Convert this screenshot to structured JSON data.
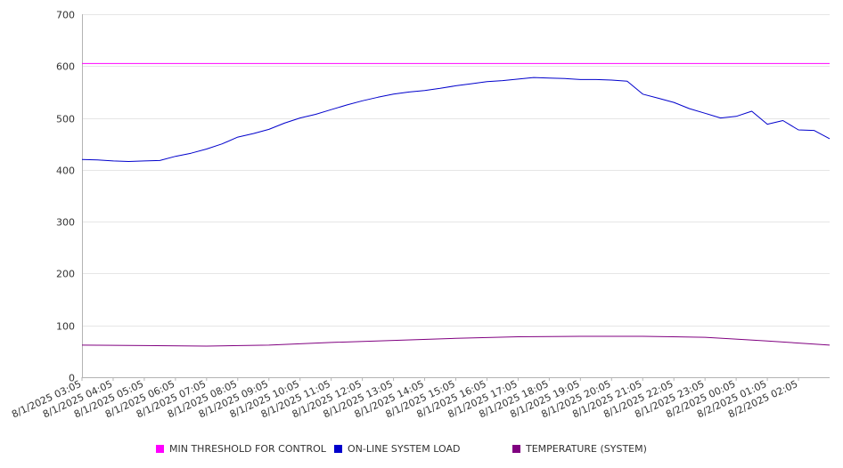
{
  "chart_data": {
    "type": "line",
    "title": "",
    "xlabel": "",
    "ylabel": "",
    "ylim": [
      0,
      700
    ],
    "yticks": [
      0,
      100,
      200,
      300,
      400,
      500,
      600,
      700
    ],
    "grid": true,
    "legend_position": "bottom",
    "x_start": "8/1/2025 03:05",
    "x_end": "8/2/2025 03:05",
    "categories": [
      "8/1/2025 03:05",
      "8/1/2025 04:05",
      "8/1/2025 05:05",
      "8/1/2025 06:05",
      "8/1/2025 07:05",
      "8/1/2025 08:05",
      "8/1/2025 09:05",
      "8/1/2025 10:05",
      "8/1/2025 11:05",
      "8/1/2025 12:05",
      "8/1/2025 13:05",
      "8/1/2025 14:05",
      "8/1/2025 15:05",
      "8/1/2025 16:05",
      "8/1/2025 17:05",
      "8/1/2025 18:05",
      "8/1/2025 19:05",
      "8/1/2025 20:05",
      "8/1/2025 21:05",
      "8/1/2025 22:05",
      "8/1/2025 23:05",
      "8/2/2025 00:05",
      "8/2/2025 01:05",
      "8/2/2025 02:05"
    ],
    "series": [
      {
        "name": "MIN THRESHOLD FOR CONTROL",
        "color": "#ff00ff",
        "points": [
          [
            "8/1/2025 03:05",
            605
          ],
          [
            "8/2/2025 03:05",
            605
          ]
        ]
      },
      {
        "name": "ON-LINE SYSTEM LOAD",
        "color": "#0000cc",
        "points": [
          [
            "8/1/2025 03:05",
            420
          ],
          [
            "8/1/2025 03:35",
            419
          ],
          [
            "8/1/2025 04:05",
            417
          ],
          [
            "8/1/2025 04:35",
            416
          ],
          [
            "8/1/2025 05:05",
            417
          ],
          [
            "8/1/2025 05:35",
            418
          ],
          [
            "8/1/2025 06:05",
            426
          ],
          [
            "8/1/2025 06:35",
            432
          ],
          [
            "8/1/2025 07:05",
            440
          ],
          [
            "8/1/2025 07:35",
            450
          ],
          [
            "8/1/2025 08:05",
            463
          ],
          [
            "8/1/2025 08:35",
            470
          ],
          [
            "8/1/2025 09:05",
            478
          ],
          [
            "8/1/2025 09:35",
            490
          ],
          [
            "8/1/2025 10:05",
            500
          ],
          [
            "8/1/2025 10:35",
            507
          ],
          [
            "8/1/2025 11:05",
            516
          ],
          [
            "8/1/2025 11:35",
            525
          ],
          [
            "8/1/2025 12:05",
            533
          ],
          [
            "8/1/2025 12:35",
            540
          ],
          [
            "8/1/2025 13:05",
            546
          ],
          [
            "8/1/2025 13:35",
            550
          ],
          [
            "8/1/2025 14:05",
            553
          ],
          [
            "8/1/2025 14:35",
            557
          ],
          [
            "8/1/2025 15:05",
            562
          ],
          [
            "8/1/2025 15:35",
            566
          ],
          [
            "8/1/2025 16:05",
            570
          ],
          [
            "8/1/2025 16:35",
            572
          ],
          [
            "8/1/2025 17:05",
            575
          ],
          [
            "8/1/2025 17:35",
            578
          ],
          [
            "8/1/2025 18:05",
            577
          ],
          [
            "8/1/2025 18:35",
            576
          ],
          [
            "8/1/2025 19:05",
            574
          ],
          [
            "8/1/2025 19:35",
            574
          ],
          [
            "8/1/2025 20:05",
            573
          ],
          [
            "8/1/2025 20:35",
            571
          ],
          [
            "8/1/2025 21:05",
            546
          ],
          [
            "8/1/2025 21:35",
            538
          ],
          [
            "8/1/2025 22:05",
            530
          ],
          [
            "8/1/2025 22:35",
            518
          ],
          [
            "8/1/2025 23:05",
            509
          ],
          [
            "8/1/2025 23:35",
            500
          ],
          [
            "8/2/2025 00:05",
            503
          ],
          [
            "8/2/2025 00:35",
            513
          ],
          [
            "8/2/2025 01:05",
            488
          ],
          [
            "8/2/2025 01:35",
            495
          ],
          [
            "8/2/2025 02:05",
            477
          ],
          [
            "8/2/2025 02:35",
            476
          ],
          [
            "8/2/2025 03:05",
            460
          ]
        ]
      },
      {
        "name": "TEMPERATURE (SYSTEM)",
        "color": "#800080",
        "points": [
          [
            "8/1/2025 03:05",
            62
          ],
          [
            "8/1/2025 05:05",
            61
          ],
          [
            "8/1/2025 07:05",
            60
          ],
          [
            "8/1/2025 09:05",
            62
          ],
          [
            "8/1/2025 11:05",
            67
          ],
          [
            "8/1/2025 13:05",
            71
          ],
          [
            "8/1/2025 15:05",
            75
          ],
          [
            "8/1/2025 17:05",
            78
          ],
          [
            "8/1/2025 19:05",
            79
          ],
          [
            "8/1/2025 21:05",
            79
          ],
          [
            "8/1/2025 23:05",
            77
          ],
          [
            "8/2/2025 01:05",
            70
          ],
          [
            "8/2/2025 03:05",
            62
          ]
        ]
      }
    ]
  },
  "colors": {
    "grid": "#e6e6e6",
    "axis": "#b3b3b3",
    "text": "#333333"
  }
}
